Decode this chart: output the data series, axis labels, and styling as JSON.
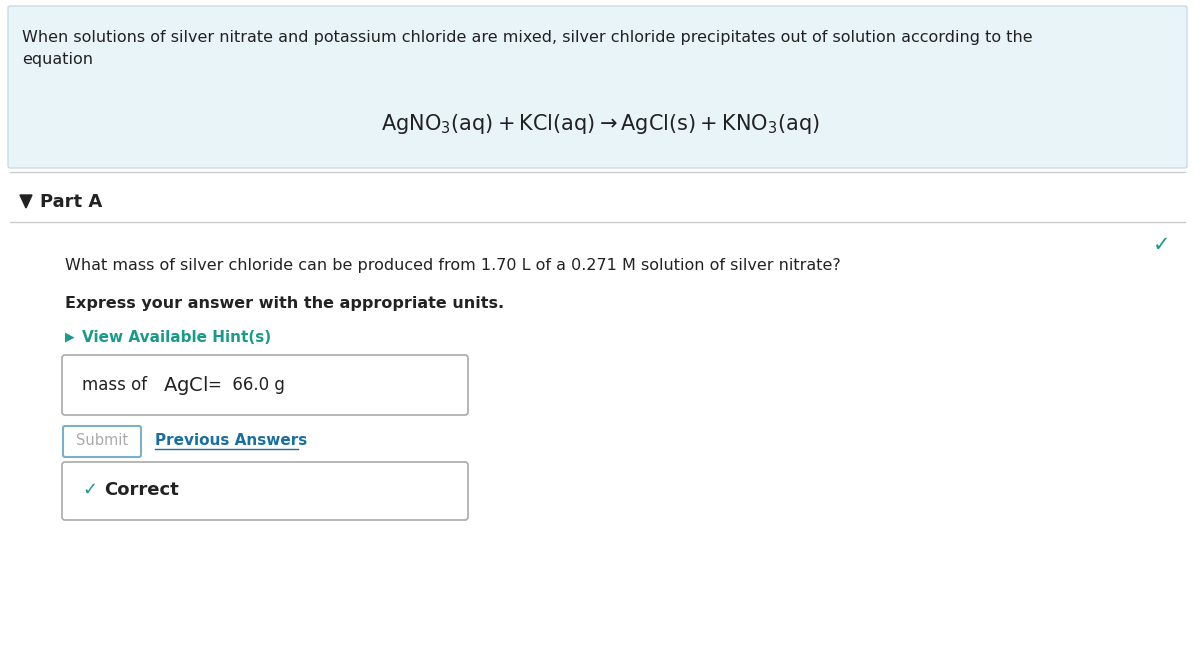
{
  "bg_color": "#ffffff",
  "header_bg": "#e8f4f8",
  "header_text": "When solutions of silver nitrate and potassium chloride are mixed, silver chloride precipitates out of solution according to the\nequation",
  "part_label": "Part A",
  "question_text": "What mass of silver chloride can be produced from 1.70 L of a 0.271 M solution of silver nitrate?",
  "bold_instruction": "Express your answer with the appropriate units.",
  "hint_text": "View Available Hint(s)",
  "submit_text": "Submit",
  "prev_answers_text": "Previous Answers",
  "correct_text": "Correct",
  "teal_color": "#1a9a8a",
  "blue_link_color": "#1a6fa0",
  "dark_text": "#222222",
  "border_color": "#aaaaaa",
  "check_color": "#1a9a8a",
  "submit_border": "#7ab0cc",
  "submit_text_color": "#aaaaaa",
  "header_border": "#c8dde8",
  "divider_color": "#cccccc"
}
